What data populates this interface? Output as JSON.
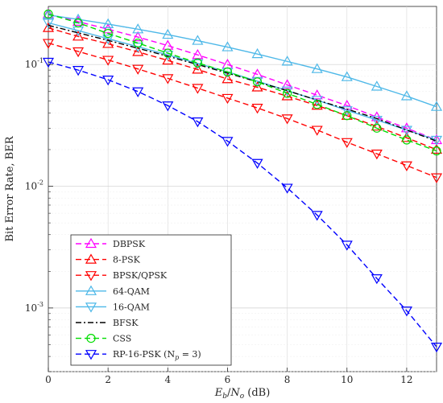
{
  "chart_data": {
    "type": "line",
    "xlabel": "E_b/N_o (dB)",
    "xlabel_parts": {
      "e": "E",
      "b": "b",
      "slash": "/",
      "n": "N",
      "o": "o",
      "unit": " (dB)"
    },
    "ylabel": "Bit Error Rate, BER",
    "x_scale": "linear",
    "y_scale": "log",
    "xlim": [
      0,
      13
    ],
    "ylim": [
      0.0003,
      0.3
    ],
    "x_ticks": [
      0,
      2,
      4,
      6,
      8,
      10,
      12
    ],
    "x_tick_labels": [
      "0",
      "2",
      "4",
      "6",
      "8",
      "10",
      "12"
    ],
    "y_ticks": [
      {
        "value": 0.001,
        "base": "10",
        "exp": "-3"
      },
      {
        "value": 0.01,
        "base": "10",
        "exp": "-2"
      },
      {
        "value": 0.1,
        "base": "10",
        "exp": "-1"
      }
    ],
    "grid": true,
    "legend_position": "bottom-left",
    "x": [
      0,
      1,
      2,
      3,
      4,
      5,
      6,
      7,
      8,
      9,
      10,
      11,
      12,
      13
    ],
    "series": [
      {
        "name": "DBPSK",
        "color": "#ff00ff",
        "dash": "dashed",
        "marker": "triangle-up",
        "values": [
          0.26,
          0.225,
          0.195,
          0.168,
          0.143,
          0.12,
          0.1,
          0.083,
          0.068,
          0.056,
          0.046,
          0.037,
          0.03,
          0.024
        ]
      },
      {
        "name": "8-PSK",
        "color": "#ff0000",
        "dash": "dashed",
        "marker": "triangle-up",
        "values": [
          0.2,
          0.17,
          0.148,
          0.127,
          0.108,
          0.091,
          0.076,
          0.065,
          0.055,
          0.046,
          0.038,
          0.031,
          0.025,
          0.02
        ]
      },
      {
        "name": "BPSK/QPSK",
        "color": "#ff0000",
        "dash": "dashed",
        "marker": "triangle-down",
        "values": [
          0.15,
          0.128,
          0.109,
          0.092,
          0.077,
          0.064,
          0.053,
          0.044,
          0.036,
          0.029,
          0.023,
          0.0185,
          0.0148,
          0.0118
        ]
      },
      {
        "name": "64-QAM",
        "color": "#4db8e8",
        "dash": "solid",
        "marker": "triangle-up",
        "values": [
          0.255,
          0.235,
          0.215,
          0.195,
          0.176,
          0.157,
          0.139,
          0.122,
          0.106,
          0.092,
          0.079,
          0.066,
          0.055,
          0.045
        ]
      },
      {
        "name": "16-QAM",
        "color": "#4db8e8",
        "dash": "solid",
        "marker": "triangle-down",
        "values": [
          0.22,
          0.19,
          0.163,
          0.14,
          0.12,
          0.102,
          0.087,
          0.073,
          0.061,
          0.051,
          0.042,
          0.035,
          0.029,
          0.024
        ]
      },
      {
        "name": "BFSK",
        "color": "#000000",
        "dash": "dashdot",
        "marker": "none",
        "values": [
          0.21,
          0.182,
          0.158,
          0.136,
          0.117,
          0.1,
          0.085,
          0.072,
          0.061,
          0.051,
          0.043,
          0.036,
          0.029,
          0.0235
        ]
      },
      {
        "name": "CSS",
        "color": "#00dd00",
        "dash": "dashed",
        "marker": "circle",
        "values": [
          0.26,
          0.22,
          0.18,
          0.15,
          0.124,
          0.103,
          0.087,
          0.072,
          0.058,
          0.047,
          0.038,
          0.03,
          0.024,
          0.0195
        ]
      },
      {
        "name": "RP-16-PSK",
        "name_suffix": " (N",
        "name_sub": "p",
        "name_tail": " = 3)",
        "color": "#0000ff",
        "dash": "dashed",
        "marker": "triangle-down",
        "values": [
          0.105,
          0.09,
          0.075,
          0.06,
          0.046,
          0.034,
          0.0235,
          0.0155,
          0.0097,
          0.0058,
          0.0033,
          0.00175,
          0.00095,
          0.00048
        ]
      }
    ]
  }
}
